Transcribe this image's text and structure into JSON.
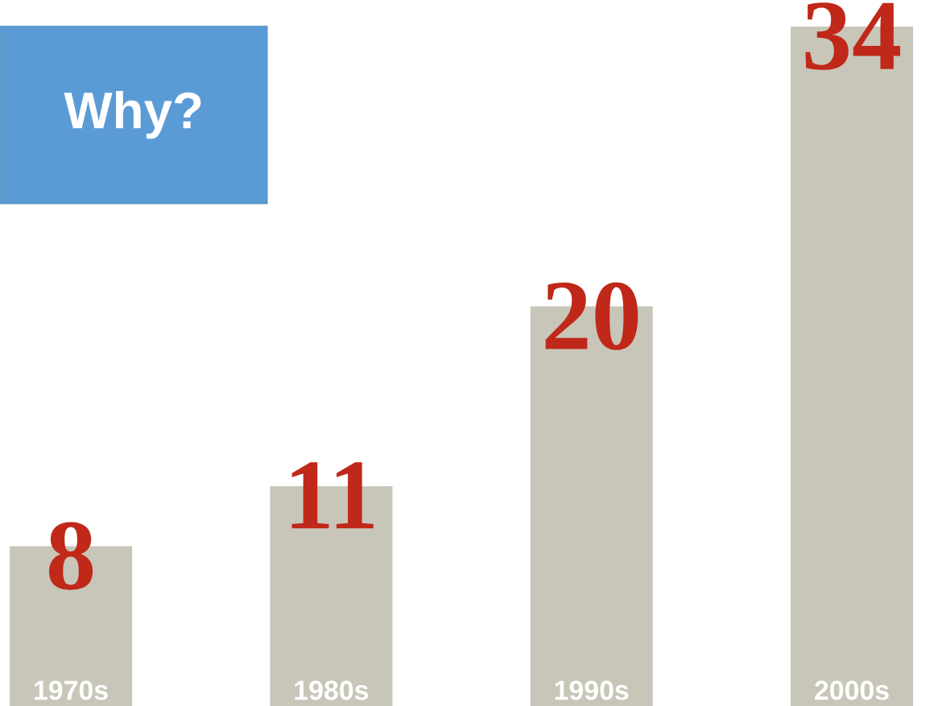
{
  "chart_data": {
    "type": "bar",
    "categories": [
      "1970s",
      "1980s",
      "1990s",
      "2000s"
    ],
    "values": [
      8,
      11,
      20,
      34
    ],
    "color": "#c8c6b8",
    "data_labels": true,
    "annotations": [
      "Why?"
    ]
  }
}
